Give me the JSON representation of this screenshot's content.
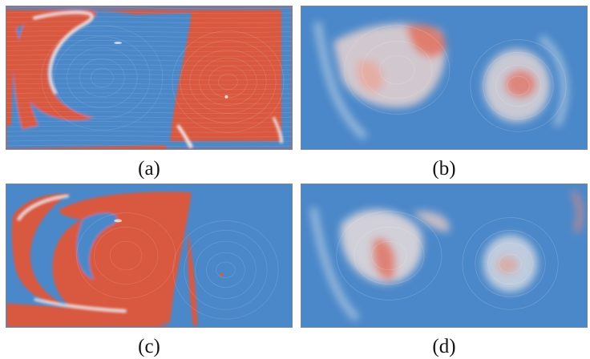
{
  "captions": {
    "a": "(a)",
    "b": "(b)",
    "c": "(c)",
    "d": "(d)"
  },
  "colors": {
    "blue": "#4b88c9",
    "red": "#d9583f",
    "white_transition": "#f2ecea",
    "border": "#7b8798"
  }
}
